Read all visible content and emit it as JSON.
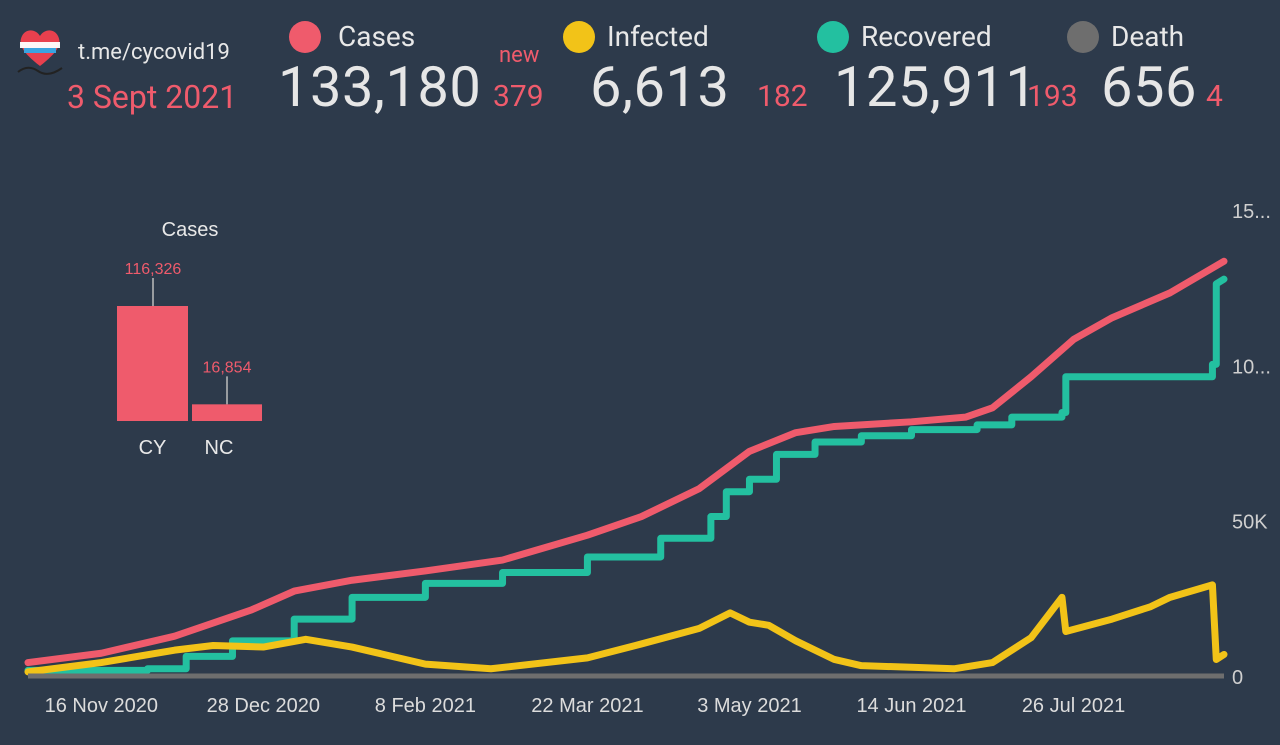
{
  "header": {
    "channel": "t.me/cycovid19",
    "date": "3 Sept 2021",
    "new_label": "new"
  },
  "metrics": [
    {
      "key": "cases",
      "label": "Cases",
      "total": "133,180",
      "new": "379",
      "color": "#ef5b6c"
    },
    {
      "key": "infected",
      "label": "Infected",
      "total": "6,613",
      "new": "182",
      "color": "#f2c318"
    },
    {
      "key": "recovered",
      "label": "Recovered",
      "total": "125,911",
      "new": "193",
      "color": "#23c0a0"
    },
    {
      "key": "death",
      "label": "Death",
      "total": "656",
      "new": "4",
      "color": "#6e6e6e"
    }
  ],
  "chart_data": [
    {
      "type": "bar",
      "title": "Cases",
      "categories": [
        "CY",
        "NC"
      ],
      "values": [
        116326,
        16854
      ],
      "data_labels": [
        "116,326",
        "16,854"
      ],
      "color": "#ef5b6c"
    },
    {
      "type": "line",
      "x_ticks": [
        "16 Nov 2020",
        "28 Dec 2020",
        "8 Feb 2021",
        "22 Mar 2021",
        "3 May 2021",
        "14 Jun 2021",
        "26 Jul 2021"
      ],
      "y_ticks": [
        "0",
        "50K",
        "10...",
        "15..."
      ],
      "y_tick_values": [
        0,
        50000,
        100000,
        150000
      ],
      "ylim": [
        0,
        150000
      ],
      "x_range": [
        "2020-10-28",
        "2021-09-03"
      ],
      "grid": false,
      "series": [
        {
          "name": "Cases",
          "color": "#ef5b6c",
          "step": false,
          "points": [
            [
              "2020-10-28",
              4000
            ],
            [
              "2020-11-16",
              7000
            ],
            [
              "2020-12-05",
              12500
            ],
            [
              "2020-12-25",
              21000
            ],
            [
              "2021-01-05",
              27000
            ],
            [
              "2021-01-20",
              30500
            ],
            [
              "2021-02-08",
              33500
            ],
            [
              "2021-02-28",
              37000
            ],
            [
              "2021-03-22",
              45000
            ],
            [
              "2021-04-05",
              51000
            ],
            [
              "2021-04-20",
              60000
            ],
            [
              "2021-05-03",
              72000
            ],
            [
              "2021-05-15",
              78000
            ],
            [
              "2021-05-25",
              80000
            ],
            [
              "2021-06-14",
              81500
            ],
            [
              "2021-06-28",
              83000
            ],
            [
              "2021-07-05",
              86000
            ],
            [
              "2021-07-15",
              96000
            ],
            [
              "2021-07-26",
              108000
            ],
            [
              "2021-08-05",
              115000
            ],
            [
              "2021-08-20",
              123000
            ],
            [
              "2021-09-03",
              133180
            ]
          ]
        },
        {
          "name": "Recovered",
          "color": "#23c0a0",
          "step": true,
          "points": [
            [
              "2020-10-28",
              1500
            ],
            [
              "2020-11-28",
              2000
            ],
            [
              "2020-12-08",
              6000
            ],
            [
              "2020-12-20",
              11000
            ],
            [
              "2021-01-05",
              18000
            ],
            [
              "2021-01-20",
              25000
            ],
            [
              "2021-02-08",
              29500
            ],
            [
              "2021-02-28",
              33000
            ],
            [
              "2021-03-22",
              38000
            ],
            [
              "2021-04-10",
              44000
            ],
            [
              "2021-04-23",
              51000
            ],
            [
              "2021-04-27",
              59000
            ],
            [
              "2021-05-03",
              63000
            ],
            [
              "2021-05-10",
              71000
            ],
            [
              "2021-05-20",
              75000
            ],
            [
              "2021-06-01",
              77000
            ],
            [
              "2021-06-14",
              79000
            ],
            [
              "2021-07-01",
              80500
            ],
            [
              "2021-07-10",
              83000
            ],
            [
              "2021-07-23",
              84500
            ],
            [
              "2021-07-24",
              96000
            ],
            [
              "2021-08-31",
              100000
            ],
            [
              "2021-09-01",
              125911
            ]
          ]
        },
        {
          "name": "Infected",
          "color": "#f2c318",
          "step": false,
          "points": [
            [
              "2020-10-28",
              1000
            ],
            [
              "2020-11-16",
              4000
            ],
            [
              "2020-12-05",
              8000
            ],
            [
              "2020-12-15",
              9500
            ],
            [
              "2020-12-28",
              9000
            ],
            [
              "2021-01-08",
              11500
            ],
            [
              "2021-01-20",
              9000
            ],
            [
              "2021-02-08",
              3500
            ],
            [
              "2021-02-25",
              2000
            ],
            [
              "2021-03-22",
              5500
            ],
            [
              "2021-04-05",
              10000
            ],
            [
              "2021-04-20",
              15000
            ],
            [
              "2021-04-28",
              20000
            ],
            [
              "2021-05-03",
              17000
            ],
            [
              "2021-05-08",
              16000
            ],
            [
              "2021-05-15",
              11000
            ],
            [
              "2021-05-25",
              5000
            ],
            [
              "2021-06-01",
              3000
            ],
            [
              "2021-06-14",
              2500
            ],
            [
              "2021-06-25",
              2000
            ],
            [
              "2021-07-05",
              4000
            ],
            [
              "2021-07-15",
              12000
            ],
            [
              "2021-07-23",
              25000
            ],
            [
              "2021-07-24",
              14000
            ],
            [
              "2021-08-05",
              18000
            ],
            [
              "2021-08-15",
              22000
            ],
            [
              "2021-08-20",
              25000
            ],
            [
              "2021-08-31",
              29000
            ],
            [
              "2021-09-01",
              5000
            ],
            [
              "2021-09-03",
              6613
            ]
          ]
        },
        {
          "name": "Death",
          "color": "#6e6e6e",
          "step": false,
          "points": [
            [
              "2020-10-28",
              100
            ],
            [
              "2021-01-20",
              200
            ],
            [
              "2021-05-03",
              350
            ],
            [
              "2021-09-03",
              656
            ]
          ]
        }
      ]
    }
  ]
}
